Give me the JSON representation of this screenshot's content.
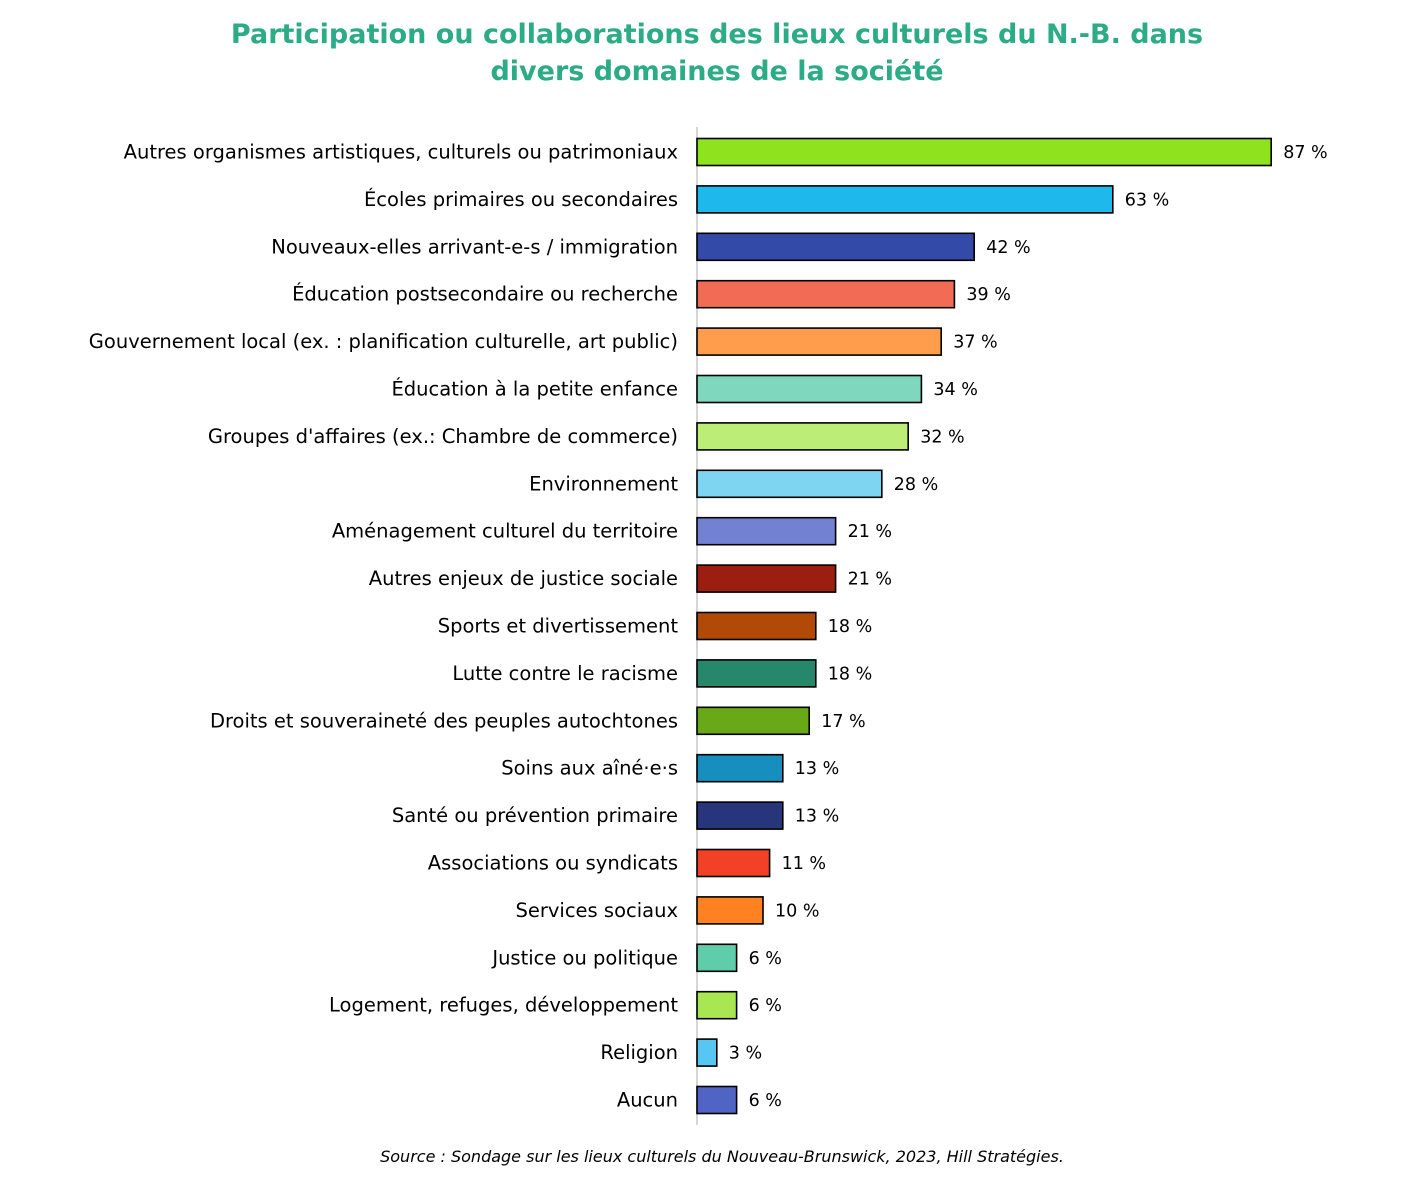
{
  "chart_data": {
    "type": "bar",
    "orientation": "horizontal",
    "title_lines": [
      "Participation ou collaborations des lieux culturels du N.-B. dans",
      "divers domaines de la société"
    ],
    "source": "Source : Sondage sur les lieux culturels du Nouveau-Brunswick, 2023, Hill Stratégies.",
    "value_suffix": " %",
    "xlim": [
      0,
      100
    ],
    "grid": false,
    "legend": "none",
    "categories": [
      "Autres organismes artistiques, culturels ou patrimoniaux",
      "Écoles primaires ou secondaires",
      "Nouveaux-elles arrivant-e-s / immigration",
      "Éducation postsecondaire ou recherche",
      "Gouvernement local (ex. : planification culturelle, art public)",
      "Éducation à la petite enfance",
      "Groupes d'affaires (ex.: Chambre de commerce)",
      "Environnement",
      "Aménagement culturel du territoire",
      "Autres enjeux de justice sociale",
      "Sports et divertissement",
      "Lutte contre le racisme",
      "Droits et souveraineté des peuples autochtones",
      "Soins aux aîné·e·s",
      "Santé ou prévention primaire",
      "Associations ou syndicats",
      "Services sociaux",
      "Justice ou politique",
      "Logement, refuges, développement",
      "Religion",
      "Aucun"
    ],
    "values": [
      87,
      63,
      42,
      39,
      37,
      34,
      32,
      28,
      21,
      21,
      18,
      18,
      17,
      13,
      13,
      11,
      10,
      6,
      6,
      3,
      6
    ],
    "value_labels": [
      "87 %",
      "63 %",
      "42 %",
      "39 %",
      "37 %",
      "34 %",
      "32 %",
      "28 %",
      "21 %",
      "21 %",
      "18 %",
      "18 %",
      "17 %",
      "13 %",
      "13 %",
      "11 %",
      "10 %",
      "6 %",
      "6 %",
      "3 %",
      "6 %"
    ],
    "colors": [
      "#8ee21e",
      "#1fb8ec",
      "#344aa8",
      "#f26b54",
      "#ff9d4d",
      "#7fd8be",
      "#bbed77",
      "#7dd5f2",
      "#7281d2",
      "#9c1e10",
      "#b04a06",
      "#26876b",
      "#69a818",
      "#178fbe",
      "#27357a",
      "#f24127",
      "#ff8122",
      "#5fccaa",
      "#a8e752",
      "#58c6f2",
      "#5064c6"
    ]
  }
}
